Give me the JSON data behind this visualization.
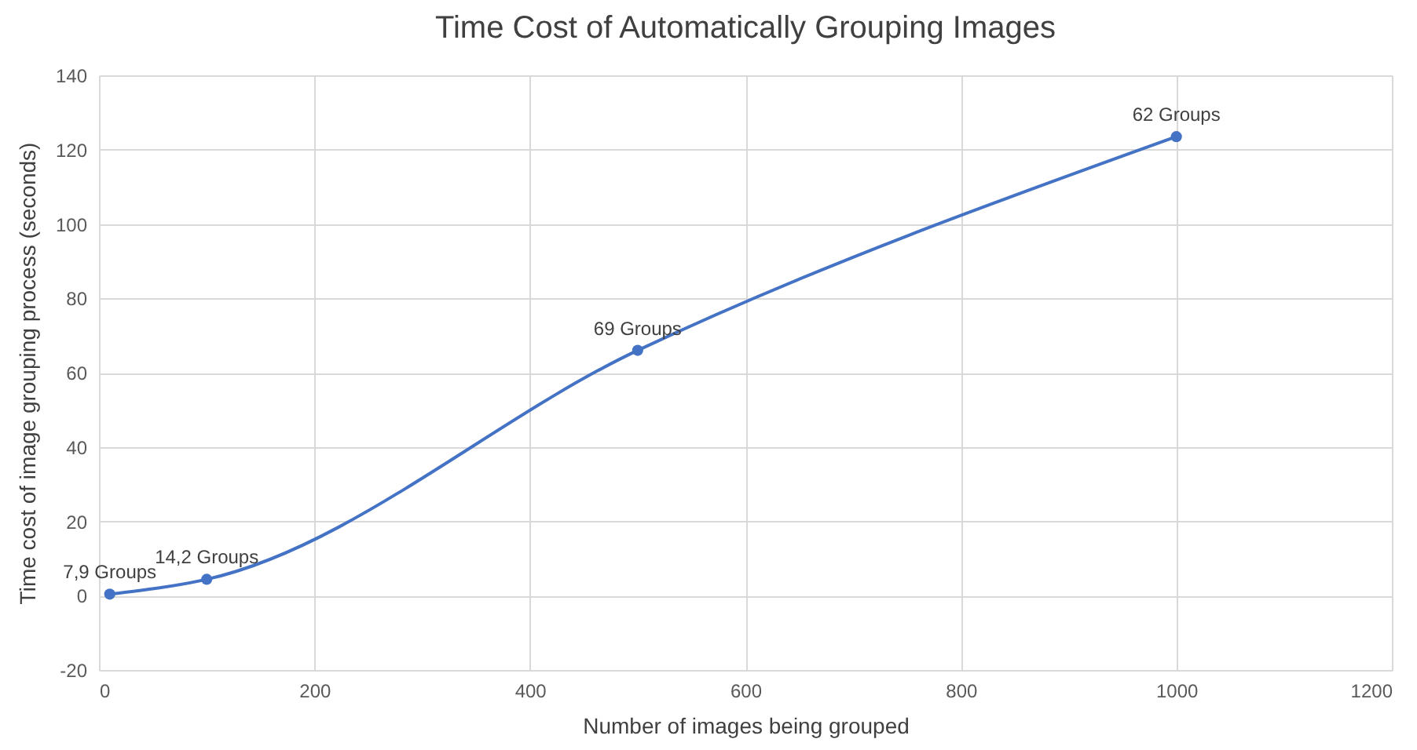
{
  "chart_data": {
    "type": "line",
    "title": "Time Cost of Automatically Grouping Images",
    "xlabel": "Number of images being grouped",
    "ylabel": "Time cost of image grouping process (seconds)",
    "x": [
      10,
      100,
      500,
      1000
    ],
    "series": [
      {
        "color": "#4472c4",
        "values": [
          0.4,
          4.4,
          66,
          123.5
        ]
      }
    ],
    "xlim": [
      0,
      1200
    ],
    "xticks": [
      0,
      200,
      400,
      600,
      800,
      1000,
      1200
    ],
    "ylim": [
      -20,
      140
    ],
    "yticks": [
      -20,
      0,
      20,
      40,
      60,
      80,
      100,
      120,
      140
    ],
    "grid": true,
    "marker": "circle",
    "line_style": "solid",
    "annotations": [
      {
        "text": "7,9 Groups",
        "x": 10,
        "y": 0.4
      },
      {
        "text": "14,2 Groups",
        "x": 100,
        "y": 4.4
      },
      {
        "text": "69 Groups",
        "x": 500,
        "y": 66
      },
      {
        "text": "62 Groups",
        "x": 1000,
        "y": 123.5
      }
    ]
  }
}
